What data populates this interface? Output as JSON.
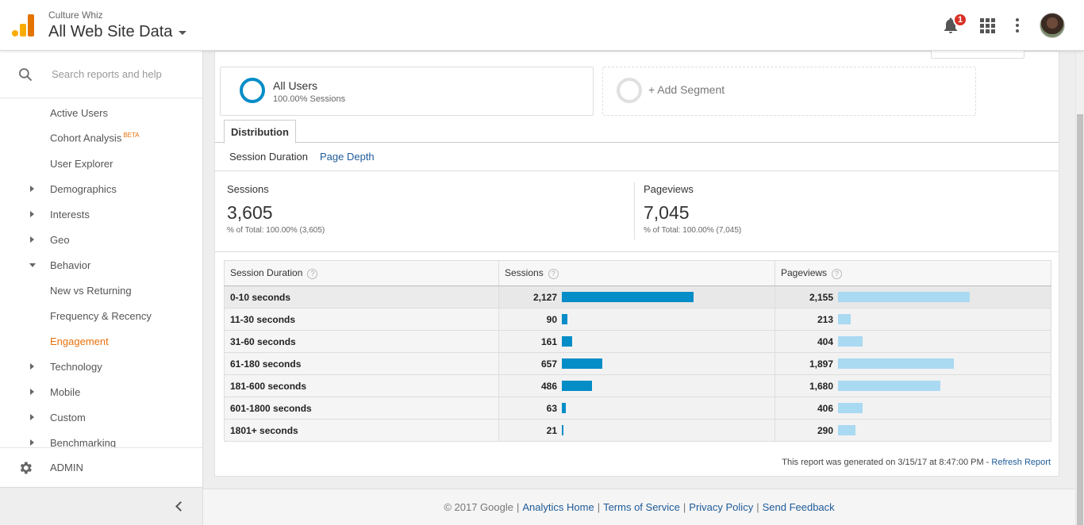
{
  "header": {
    "account": "Culture Whiz",
    "property": "All Web Site Data",
    "notification_count": "1"
  },
  "sidebar": {
    "search_placeholder": "Search reports and help",
    "items": [
      {
        "label": "Active Users",
        "type": "leaf"
      },
      {
        "label": "Cohort Analysis",
        "type": "leaf",
        "badge": "BETA"
      },
      {
        "label": "User Explorer",
        "type": "leaf"
      },
      {
        "label": "Demographics",
        "type": "collapsed"
      },
      {
        "label": "Interests",
        "type": "collapsed"
      },
      {
        "label": "Geo",
        "type": "collapsed"
      },
      {
        "label": "Behavior",
        "type": "expanded"
      },
      {
        "label": "New vs Returning",
        "type": "leaf"
      },
      {
        "label": "Frequency & Recency",
        "type": "leaf"
      },
      {
        "label": "Engagement",
        "type": "leaf",
        "active": true
      },
      {
        "label": "Technology",
        "type": "collapsed"
      },
      {
        "label": "Mobile",
        "type": "collapsed"
      },
      {
        "label": "Custom",
        "type": "collapsed"
      },
      {
        "label": "Benchmarking",
        "type": "collapsed"
      }
    ],
    "admin_label": "ADMIN"
  },
  "segments": {
    "all_users_name": "All Users",
    "all_users_sub": "100.00% Sessions",
    "add_label": "+ Add Segment"
  },
  "tabs": {
    "distribution": "Distribution",
    "session_duration": "Session Duration",
    "page_depth": "Page Depth"
  },
  "summary": {
    "sessions_label": "Sessions",
    "sessions_value": "3,605",
    "sessions_total": "% of Total: 100.00% (3,605)",
    "pageviews_label": "Pageviews",
    "pageviews_value": "7,045",
    "pageviews_total": "% of Total: 100.00% (7,045)"
  },
  "table": {
    "col_dimension": "Session Duration",
    "col_sessions": "Sessions",
    "col_pageviews": "Pageviews",
    "help_glyph": "?",
    "rows": [
      {
        "label": "0-10 seconds",
        "sessions": "2,127",
        "sessions_num": 2127,
        "pageviews": "2,155",
        "pageviews_num": 2155
      },
      {
        "label": "11-30 seconds",
        "sessions": "90",
        "sessions_num": 90,
        "pageviews": "213",
        "pageviews_num": 213
      },
      {
        "label": "31-60 seconds",
        "sessions": "161",
        "sessions_num": 161,
        "pageviews": "404",
        "pageviews_num": 404
      },
      {
        "label": "61-180 seconds",
        "sessions": "657",
        "sessions_num": 657,
        "pageviews": "1,897",
        "pageviews_num": 1897
      },
      {
        "label": "181-600 seconds",
        "sessions": "486",
        "sessions_num": 486,
        "pageviews": "1,680",
        "pageviews_num": 1680
      },
      {
        "label": "601-1800 seconds",
        "sessions": "63",
        "sessions_num": 63,
        "pageviews": "406",
        "pageviews_num": 406
      },
      {
        "label": "1801+ seconds",
        "sessions": "21",
        "sessions_num": 21,
        "pageviews": "290",
        "pageviews_num": 290
      }
    ]
  },
  "report": {
    "generated_text": "This report was generated on 3/15/17 at 8:47:00 PM -",
    "refresh_label": "Refresh Report"
  },
  "footer": {
    "copyright": "© 2017 Google",
    "sep": "|",
    "links": [
      "Analytics Home",
      "Terms of Service",
      "Privacy Policy",
      "Send Feedback"
    ]
  },
  "colors": {
    "accent_orange": "#e8710a",
    "sessions_bar": "#058dc7",
    "pageviews_bar": "#aad9f2",
    "link_blue": "#1f5b99"
  },
  "icons": {
    "logo": "analytics-logo",
    "bell": "bell-icon",
    "apps": "apps-grid-icon",
    "more": "more-vert-icon",
    "search": "search-icon",
    "admin": "gear-icon",
    "collapse": "chevron-left-icon"
  }
}
